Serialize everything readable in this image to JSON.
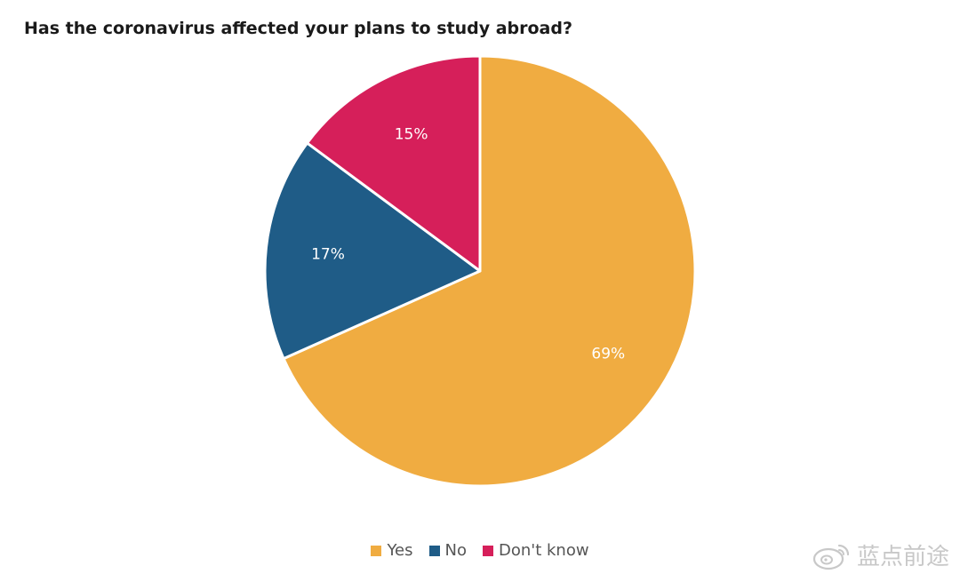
{
  "chart_data": {
    "type": "pie",
    "title": "Has the coronavirus affected your plans to study abroad?",
    "slices": [
      {
        "label": "Yes",
        "value": 69,
        "value_label": "69%",
        "color": "#F0AC41"
      },
      {
        "label": "No",
        "value": 17,
        "value_label": "17%",
        "color": "#1F5C87"
      },
      {
        "label": "Don't know",
        "value": 15,
        "value_label": "15%",
        "color": "#D61F5A"
      }
    ],
    "legend_position": "bottom-center",
    "start_angle": "12 o'clock",
    "direction": "clockwise"
  },
  "watermark": {
    "icon": "weibo-icon",
    "text": "蓝点前途"
  }
}
